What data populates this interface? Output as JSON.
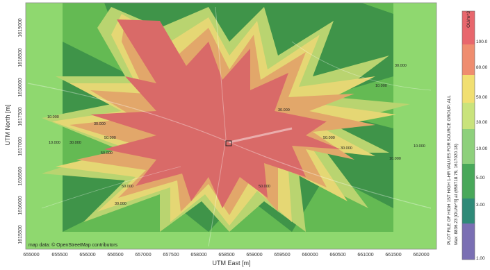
{
  "map": {
    "attribution": "map data: © OpenStreetMap contributors",
    "x_axis_title": "UTM East [m]",
    "y_axis_title": "UTM North [m]",
    "x_ticks": [
      "655000",
      "655500",
      "656000",
      "656500",
      "657000",
      "657500",
      "658000",
      "658500",
      "659000",
      "659500",
      "660000",
      "660500",
      "661000",
      "661500",
      "662000"
    ],
    "y_ticks": [
      "1619000",
      "1618500",
      "1618000",
      "1617500",
      "1617000",
      "1616500",
      "1616000",
      "1615500"
    ],
    "contour_labels": [
      "10.000",
      "30.000",
      "50.000",
      "50.000",
      "30.000",
      "10.000",
      "30.000",
      "50.000",
      "30.000",
      "10.000",
      "10.000",
      "30.000",
      "50.000",
      "10.000",
      "30.000",
      "50.000"
    ]
  },
  "legend": {
    "unit": "OU/m^3",
    "labels": [
      "100.0",
      "80.00",
      "50.00",
      "30.00",
      "10.00",
      "5.00",
      "3.00",
      "1.00"
    ],
    "colors": {
      "100": "#e8676d",
      "80": "#ef8d6f",
      "50": "#f1df71",
      "30": "#c9e37c",
      "10": "#8ed07c",
      "5": "#49a85a",
      "3": "#2f8a78",
      "1": "#7a6fb3"
    }
  },
  "caption": {
    "line1": "PLOT FILE OF HIGH 1ST HIGH 1-HR VALUES FOR SOURCE GROUP: ALL",
    "line2": "Max: 8836.23 [OU/m^3] at (658718.79, 1617020.18)"
  },
  "colors": {
    "outer_green": "#8fd86f",
    "mid_green": "#5fb74f",
    "dark_green": "#3f9449",
    "yellow_green": "#b9d470",
    "yellow": "#e5d774",
    "orange": "#e2a76a",
    "red": "#d96a68",
    "plot_border": "#8a8a8a"
  }
}
